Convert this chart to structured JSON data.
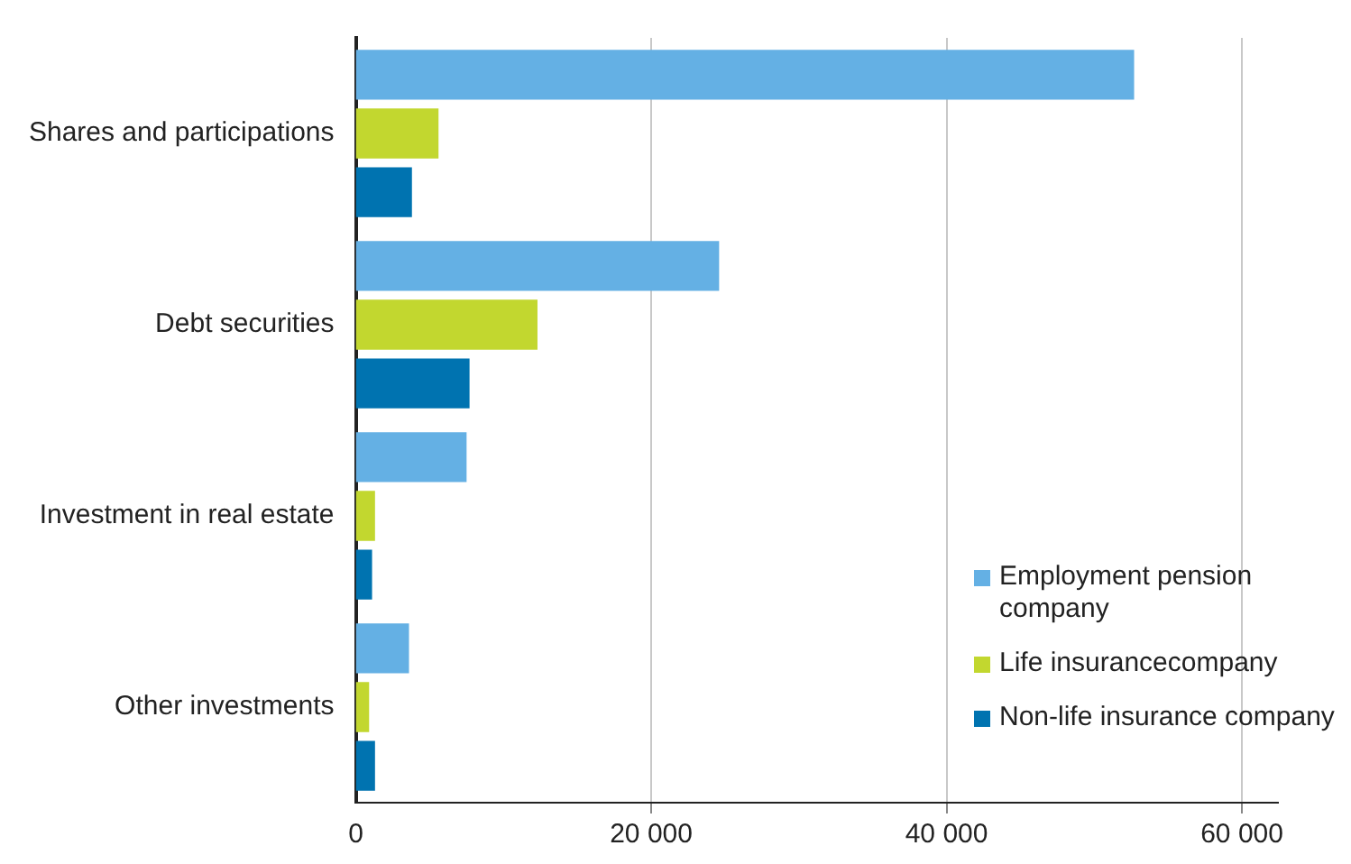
{
  "chart_data": {
    "type": "bar",
    "orientation": "horizontal",
    "categories": [
      "Shares and participations",
      "Debt securities",
      "Investment in real estate",
      "Other investments"
    ],
    "series": [
      {
        "name": "Employment pension company",
        "color": "#64b0e4",
        "values": [
          52700,
          24600,
          7500,
          3600
        ]
      },
      {
        "name": "Life insurancecompany",
        "color": "#c2d72f",
        "values": [
          5600,
          12300,
          1300,
          900
        ]
      },
      {
        "name": "Non-life insurance company",
        "color": "#0073b0",
        "values": [
          3800,
          7700,
          1100,
          1300
        ]
      }
    ],
    "xlim": [
      0,
      62500
    ],
    "xticks": [
      0,
      {
        "value": 20000,
        "label": "20 000"
      },
      {
        "value": 40000,
        "label": "40 000"
      },
      {
        "value": 60000,
        "label": "60 000"
      }
    ],
    "grid": "x",
    "legend": "bottom right"
  }
}
